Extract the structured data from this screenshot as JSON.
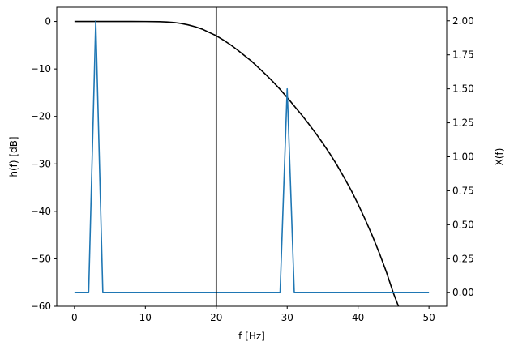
{
  "chart_data": {
    "type": "line",
    "title": "",
    "xlabel": "f [Hz]",
    "ylabel_left": "h(f) [dB]",
    "ylabel_right": "X(f)",
    "xlim": [
      -2.5,
      52.5
    ],
    "ylim_left": [
      -60,
      3
    ],
    "ylim_right": [
      -0.1,
      2.1
    ],
    "grid": false,
    "x_ticks": [
      0,
      10,
      20,
      30,
      40,
      50
    ],
    "x_tick_labels": [
      "0",
      "10",
      "20",
      "30",
      "40",
      "50"
    ],
    "y_left_ticks": [
      0,
      -10,
      -20,
      -30,
      -40,
      -50,
      -60
    ],
    "y_left_tick_labels": [
      "0",
      "−10",
      "−20",
      "−30",
      "−40",
      "−50",
      "−60"
    ],
    "y_right_ticks": [
      0.0,
      0.25,
      0.5,
      0.75,
      1.0,
      1.25,
      1.5,
      1.75,
      2.0
    ],
    "y_right_tick_labels": [
      "0.00",
      "0.25",
      "0.50",
      "0.75",
      "1.00",
      "1.25",
      "1.50",
      "1.75",
      "2.00"
    ],
    "vertical_line": {
      "x": 20,
      "color": "#000000"
    },
    "series": [
      {
        "axis": "left",
        "color": "#000000",
        "x": [
          0,
          2,
          4,
          6,
          8,
          10,
          12,
          13,
          14,
          15,
          16,
          17,
          18,
          19,
          20,
          21,
          22,
          23,
          24,
          25,
          26,
          27,
          28,
          29,
          30,
          31,
          32,
          33,
          34,
          35,
          36,
          37,
          38,
          39,
          40,
          41,
          42,
          43,
          44,
          45,
          45.7
        ],
        "values": [
          0,
          0,
          0,
          0,
          0,
          -0.01,
          -0.05,
          -0.1,
          -0.2,
          -0.4,
          -0.7,
          -1.1,
          -1.6,
          -2.3,
          -3.0,
          -3.9,
          -4.9,
          -6.0,
          -7.2,
          -8.4,
          -9.8,
          -11.2,
          -12.7,
          -14.3,
          -16.0,
          -17.8,
          -19.6,
          -21.5,
          -23.5,
          -25.6,
          -27.8,
          -30.2,
          -32.8,
          -35.5,
          -38.5,
          -41.7,
          -45.1,
          -48.8,
          -52.8,
          -57.3,
          -60
        ]
      },
      {
        "axis": "right",
        "color": "#1f77b4",
        "x": [
          0,
          1,
          2,
          3,
          4,
          5,
          6,
          7,
          8,
          9,
          10,
          11,
          12,
          13,
          14,
          15,
          16,
          17,
          18,
          19,
          20,
          21,
          22,
          23,
          24,
          25,
          26,
          27,
          28,
          29,
          30,
          31,
          32,
          33,
          34,
          35,
          36,
          37,
          38,
          39,
          40,
          41,
          42,
          43,
          44,
          45,
          46,
          47,
          48,
          49,
          50
        ],
        "values": [
          0,
          0,
          0,
          2.0,
          0,
          0,
          0,
          0,
          0,
          0,
          0,
          0,
          0,
          0,
          0,
          0,
          0,
          0,
          0,
          0,
          0,
          0,
          0,
          0,
          0,
          0,
          0,
          0,
          0,
          0,
          1.5,
          0,
          0,
          0,
          0,
          0,
          0,
          0,
          0,
          0,
          0,
          0,
          0,
          0,
          0,
          0,
          0,
          0,
          0,
          0,
          0
        ]
      }
    ]
  }
}
